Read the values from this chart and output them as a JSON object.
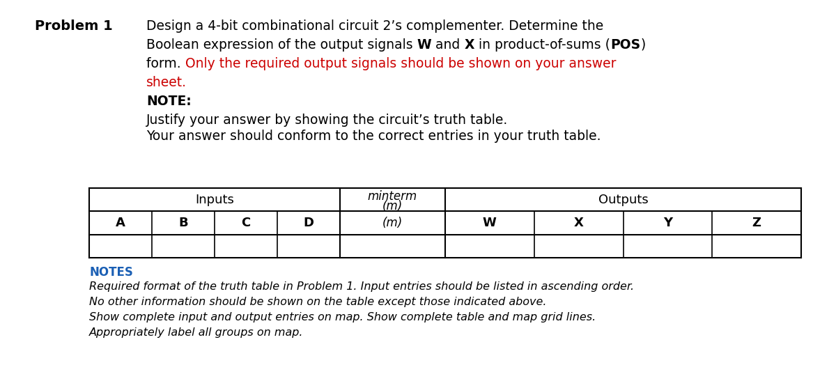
{
  "problem_label": "Problem 1",
  "body_line1": "Design a 4-bit combinational circuit 2’s complementer. Determine the",
  "body_line2_parts": [
    {
      "text": "Boolean expression of the output signals ",
      "bold": false,
      "red": false
    },
    {
      "text": "W",
      "bold": true,
      "red": false
    },
    {
      "text": " and ",
      "bold": false,
      "red": false
    },
    {
      "text": "X",
      "bold": true,
      "red": false
    },
    {
      "text": " in product-of-sums (",
      "bold": false,
      "red": false
    },
    {
      "text": "POS",
      "bold": true,
      "red": false
    },
    {
      "text": ")",
      "bold": false,
      "red": false
    }
  ],
  "body_line3_parts": [
    {
      "text": "form. ",
      "bold": false,
      "red": false
    },
    {
      "text": "Only the required output signals should be shown on your answer",
      "bold": false,
      "red": true
    }
  ],
  "body_line4": "sheet.",
  "body_line4_red": true,
  "note_label": "NOTE:",
  "note_line1": "Justify your answer by showing the circuit’s truth table.",
  "note_line2": "Your answer should conform to the correct entries in your truth table.",
  "table_header_inputs": "Inputs",
  "table_header_minterm_top": "minterm",
  "table_header_minterm_bot": "(m)",
  "table_header_outputs": "Outputs",
  "col_labels_row1": [
    "A",
    "B",
    "C",
    "D"
  ],
  "col_label_mid": "(m)",
  "col_labels_row2": [
    "W",
    "X",
    "Y",
    "Z"
  ],
  "notes_label": "NOTES",
  "notes_lines": [
    "Required format of the truth table in Problem 1. Input entries should be listed in ascending order.",
    "No other information should be shown on the table except those indicated above.",
    "Show complete input and output entries on map. Show complete table and map grid lines.",
    "Appropriately label all groups on map."
  ],
  "bg_color": "#ffffff",
  "text_color": "#000000",
  "red_color": "#cc0000",
  "blue_color": "#1a5fb4",
  "body_fontsize": 13.5,
  "label_fontsize": 14,
  "notes_fontsize": 11.5,
  "fig_width": 12.0,
  "fig_height": 5.24
}
